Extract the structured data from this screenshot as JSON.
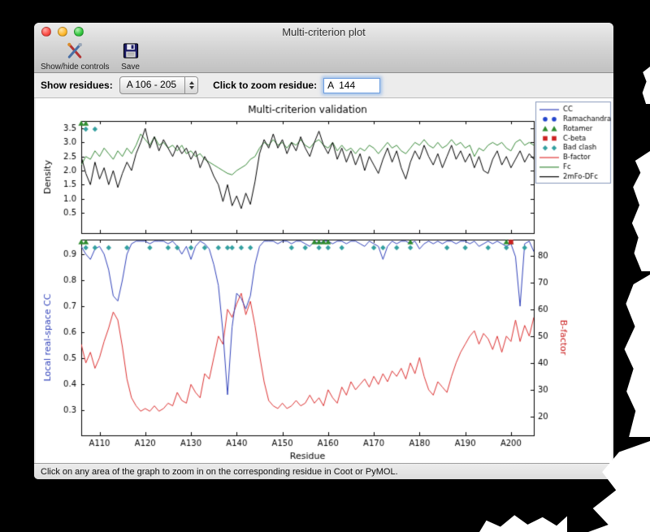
{
  "window": {
    "title": "Multi-criterion plot",
    "toolbar": {
      "show_hide_label": "Show/hide controls",
      "save_label": "Save"
    },
    "controls": {
      "show_residues_label": "Show residues:",
      "residue_range_value": "A 106 - 205",
      "zoom_label": "Click to zoom residue:",
      "zoom_value": "A  144"
    },
    "status_text": "Click on any area of the graph to zoom in on the corresponding residue in Coot or PyMOL."
  },
  "chart_data": {
    "type": "line",
    "title": "Multi-criterion validation",
    "x_label": "Residue",
    "x_range": [
      106,
      205
    ],
    "x_ticks": [
      "A110",
      "A120",
      "A130",
      "A140",
      "A150",
      "A160",
      "A170",
      "A180",
      "A190",
      "A200"
    ],
    "x_tick_values": [
      110,
      120,
      130,
      140,
      150,
      160,
      170,
      180,
      190,
      200
    ],
    "top_plot": {
      "ylabel": "Density",
      "ylim": [
        -0.22,
        3.76
      ],
      "yticks": [
        0.5,
        1.0,
        1.5,
        2.0,
        2.5,
        3.0,
        3.5
      ],
      "series": [
        {
          "name": "Fc",
          "color": "#3c8c3c",
          "values": [
            2.2,
            2.5,
            2.4,
            2.7,
            2.5,
            2.8,
            2.6,
            2.4,
            2.7,
            2.5,
            2.8,
            2.6,
            2.9,
            3.3,
            3.1,
            2.9,
            3.2,
            2.9,
            3.0,
            2.8,
            2.9,
            2.7,
            2.9,
            2.6,
            2.7,
            2.5,
            2.6,
            2.4,
            2.3,
            2.2,
            2.1,
            2.0,
            1.9,
            1.85,
            2.0,
            2.1,
            2.2,
            2.4,
            2.5,
            2.8,
            3.0,
            2.9,
            3.1,
            2.9,
            3.0,
            2.8,
            3.0,
            2.9,
            3.1,
            2.9,
            2.8,
            3.0,
            3.1,
            2.9,
            2.8,
            3.0,
            2.7,
            2.9,
            2.7,
            2.8,
            2.6,
            2.8,
            2.7,
            2.9,
            2.8,
            2.6,
            2.8,
            3.0,
            2.8,
            2.9,
            2.7,
            2.6,
            2.8,
            3.0,
            2.9,
            3.1,
            2.9,
            2.8,
            3.0,
            2.8,
            2.9,
            3.1,
            2.9,
            3.0,
            2.8,
            2.9,
            2.5,
            2.8,
            2.7,
            2.9,
            3.0,
            2.9,
            3.0,
            2.8,
            2.7,
            3.0,
            3.1,
            2.9,
            3.0,
            2.9
          ]
        },
        {
          "name": "2mFo-DFc",
          "color": "#000000",
          "values": [
            2.5,
            1.9,
            1.5,
            2.3,
            1.7,
            2.1,
            1.5,
            2.0,
            1.4,
            1.9,
            2.3,
            2.0,
            2.6,
            3.0,
            3.5,
            2.8,
            3.2,
            2.7,
            3.1,
            2.8,
            2.5,
            2.9,
            2.6,
            2.8,
            2.4,
            2.7,
            2.1,
            2.5,
            2.2,
            1.8,
            1.5,
            0.9,
            1.5,
            0.75,
            1.1,
            0.65,
            1.2,
            0.8,
            1.6,
            2.6,
            3.1,
            2.8,
            3.3,
            2.8,
            3.1,
            2.6,
            3.0,
            2.7,
            3.2,
            2.8,
            2.5,
            3.0,
            3.4,
            2.9,
            2.6,
            3.0,
            2.4,
            2.8,
            2.3,
            2.7,
            2.2,
            2.6,
            2.0,
            2.5,
            2.2,
            1.9,
            2.4,
            2.8,
            2.3,
            2.7,
            2.1,
            1.7,
            2.3,
            2.7,
            2.4,
            2.9,
            2.5,
            2.2,
            2.6,
            2.1,
            2.5,
            2.9,
            2.4,
            2.7,
            2.3,
            2.6,
            2.1,
            2.5,
            2.0,
            1.9,
            2.4,
            2.7,
            2.2,
            2.5,
            2.1,
            2.4,
            2.7,
            2.3,
            2.6,
            2.4
          ]
        }
      ],
      "markers": {
        "rotamer": [
          106,
          107
        ],
        "bad_clash": [
          107,
          109
        ]
      }
    },
    "bottom_plot": {
      "ylabel_left": "Local real-space CC",
      "ylabel_left_color": "#3344bb",
      "ylim_left": [
        0.204,
        0.956
      ],
      "yticks_left": [
        0.3,
        0.4,
        0.5,
        0.6,
        0.7,
        0.8,
        0.9
      ],
      "ylabel_right": "B-factor",
      "ylabel_right_color": "#cc2222",
      "ylim_right": [
        13,
        86
      ],
      "yticks_right": [
        20,
        30,
        40,
        50,
        60,
        70,
        80
      ],
      "series_left": {
        "name": "CC",
        "color": "#3344bb",
        "values": [
          0.93,
          0.9,
          0.88,
          0.92,
          0.93,
          0.9,
          0.84,
          0.74,
          0.72,
          0.8,
          0.9,
          0.94,
          0.95,
          0.95,
          0.95,
          0.94,
          0.95,
          0.95,
          0.95,
          0.94,
          0.95,
          0.93,
          0.9,
          0.93,
          0.88,
          0.93,
          0.95,
          0.94,
          0.92,
          0.86,
          0.78,
          0.6,
          0.36,
          0.62,
          0.75,
          0.73,
          0.69,
          0.74,
          0.86,
          0.93,
          0.95,
          0.95,
          0.95,
          0.94,
          0.95,
          0.95,
          0.94,
          0.95,
          0.95,
          0.94,
          0.93,
          0.95,
          0.94,
          0.95,
          0.95,
          0.94,
          0.95,
          0.95,
          0.94,
          0.95,
          0.95,
          0.94,
          0.93,
          0.95,
          0.94,
          0.93,
          0.88,
          0.93,
          0.95,
          0.94,
          0.95,
          0.95,
          0.94,
          0.95,
          0.92,
          0.94,
          0.95,
          0.94,
          0.95,
          0.94,
          0.95,
          0.95,
          0.94,
          0.95,
          0.95,
          0.94,
          0.95,
          0.93,
          0.94,
          0.95,
          0.94,
          0.95,
          0.94,
          0.93,
          0.94,
          0.89,
          0.7,
          0.94,
          0.95,
          0.91
        ]
      },
      "series_right": {
        "name": "B-factor",
        "color": "#dd3333",
        "values": [
          47,
          40,
          44,
          38,
          42,
          48,
          53,
          59,
          56,
          46,
          34,
          27,
          24,
          22,
          23,
          22,
          24,
          22,
          23,
          25,
          24,
          29,
          26,
          25,
          32,
          29,
          27,
          36,
          34,
          42,
          50,
          47,
          60,
          57,
          62,
          66,
          58,
          63,
          54,
          43,
          33,
          26,
          24,
          23,
          25,
          23,
          24,
          26,
          24,
          25,
          28,
          25,
          27,
          24,
          30,
          27,
          25,
          31,
          28,
          33,
          30,
          32,
          34,
          31,
          35,
          32,
          36,
          33,
          37,
          35,
          38,
          34,
          40,
          36,
          42,
          35,
          30,
          28,
          33,
          31,
          29,
          35,
          40,
          44,
          47,
          50,
          52,
          47,
          51,
          49,
          45,
          50,
          44,
          50,
          48,
          56,
          48,
          54,
          50,
          57
        ]
      },
      "markers": {
        "ramachandran": [],
        "rotamer": [
          106,
          107,
          157,
          158,
          159,
          160,
          178,
          199,
          200
        ],
        "c_beta": [
          200
        ],
        "bad_clash": [
          107,
          109,
          112,
          116,
          121,
          125,
          127,
          130,
          133,
          136,
          138,
          139,
          141,
          143,
          152,
          155,
          158,
          160,
          163,
          170,
          172,
          175,
          178,
          186,
          190,
          195,
          199,
          203
        ]
      }
    },
    "legend": [
      {
        "label": "CC",
        "type": "line",
        "color": "#3344bb"
      },
      {
        "label": "Ramachandran",
        "type": "circle",
        "color": "#2244cc"
      },
      {
        "label": "Rotamer",
        "type": "triangle",
        "color": "#2e8b2e"
      },
      {
        "label": "C-beta",
        "type": "square",
        "color": "#cc2222"
      },
      {
        "label": "Bad clash",
        "type": "diamond",
        "color": "#33a0a0"
      },
      {
        "label": "B-factor",
        "type": "line",
        "color": "#dd3333"
      },
      {
        "label": "Fc",
        "type": "line",
        "color": "#3c8c3c"
      },
      {
        "label": "2mFo-DFc",
        "type": "line",
        "color": "#000000"
      }
    ]
  }
}
